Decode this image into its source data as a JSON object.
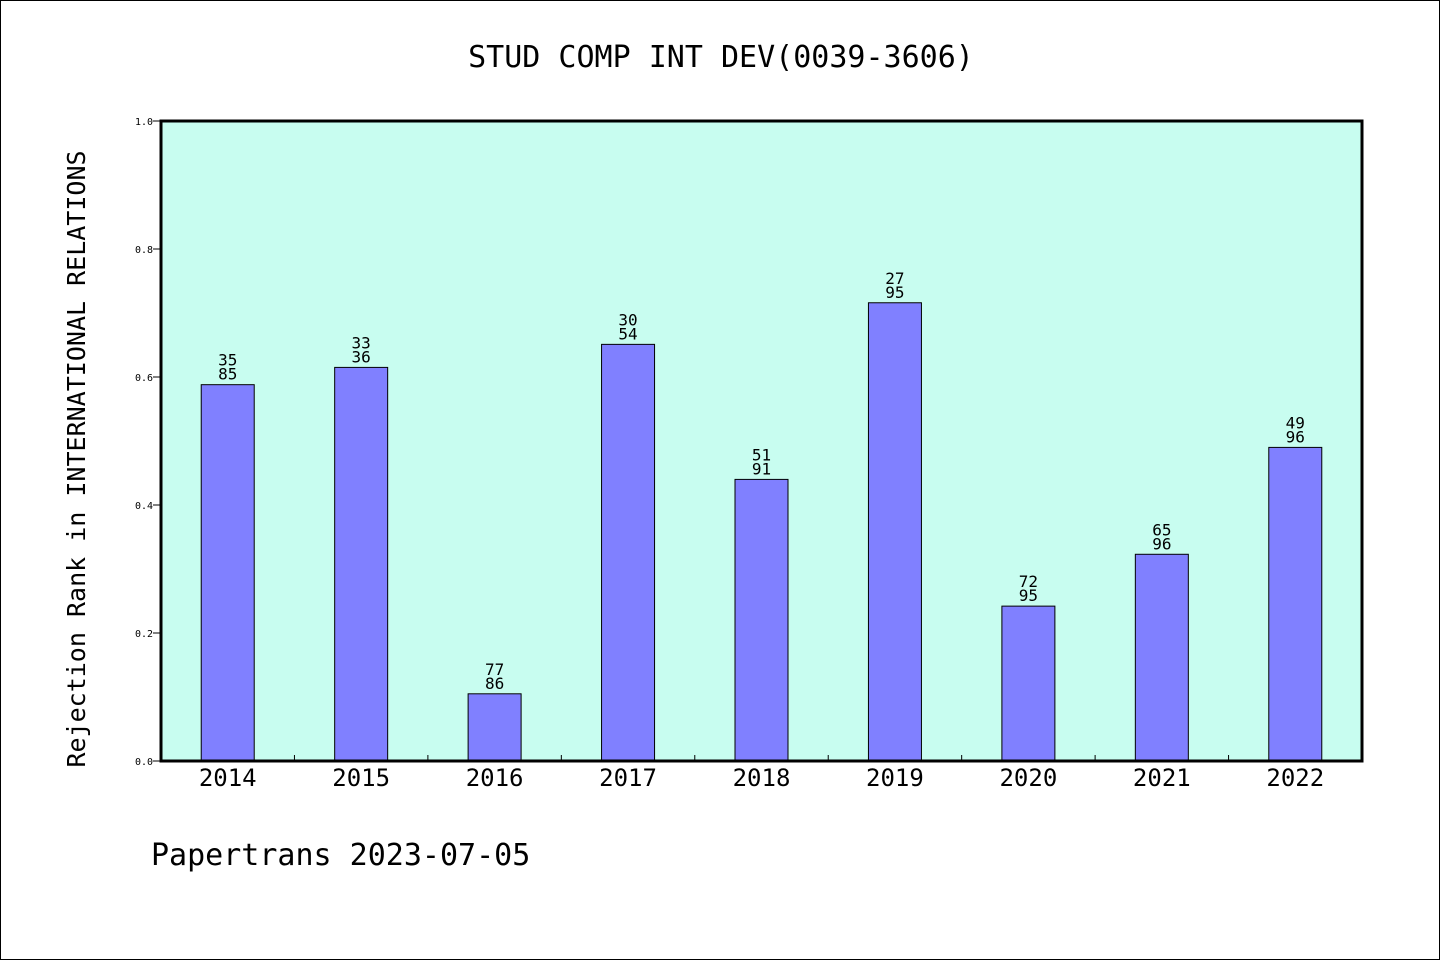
{
  "chart_data": {
    "type": "bar",
    "title": "STUD COMP INT DEV(0039-3606)",
    "xlabel": "",
    "ylabel": "Rejection Rank in INTERNATIONAL RELATIONS",
    "ylim": [
      0,
      1.0
    ],
    "yticks": [
      "0.0",
      "0.2",
      "0.4",
      "0.6",
      "0.8",
      "1.0"
    ],
    "categories": [
      "2014",
      "2015",
      "2016",
      "2017",
      "2018",
      "2019",
      "2020",
      "2021",
      "2022"
    ],
    "values": [
      0.588,
      0.615,
      0.105,
      0.651,
      0.44,
      0.716,
      0.242,
      0.323,
      0.49
    ],
    "labels_top": [
      "35",
      "33",
      "77",
      "30",
      "51",
      "27",
      "72",
      "65",
      "49"
    ],
    "labels_bottom": [
      "85",
      "36",
      "86",
      "54",
      "91",
      "95",
      "95",
      "96",
      "96"
    ],
    "grid": false,
    "colors": {
      "plot_background": "#c8fdf0",
      "bar_fill": "#8080ff",
      "bar_stroke": "#000000"
    }
  },
  "footer": {
    "text": "Papertrans 2023-07-05"
  }
}
